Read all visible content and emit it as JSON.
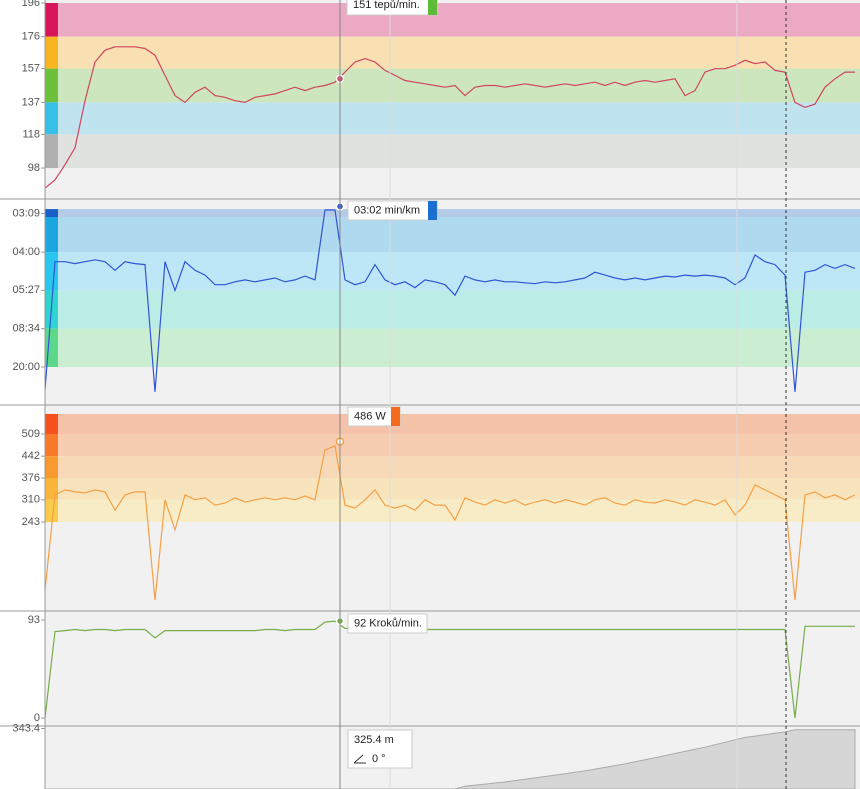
{
  "chart_data": [
    {
      "type": "line",
      "color": "#d0455f",
      "ylim": [
        80.2,
        197.8
      ],
      "yticks": [
        196,
        176,
        157,
        137,
        118,
        98
      ],
      "zones": [
        {
          "from": 176,
          "to": 196,
          "color": "#eba9c3",
          "strip": "#d8145a"
        },
        {
          "from": 157,
          "to": 176,
          "color": "#f8e0b2",
          "strip": "#f7b520"
        },
        {
          "from": 137,
          "to": 157,
          "color": "#cde6bd",
          "strip": "#6cc03a"
        },
        {
          "from": 118,
          "to": 137,
          "color": "#c0e3f0",
          "strip": "#36c0e8"
        },
        {
          "from": 98,
          "to": 118,
          "color": "#e0e2e0",
          "strip": "#b0b0b0"
        }
      ],
      "values": [
        86,
        91,
        100,
        110,
        138,
        161,
        168,
        170,
        170,
        170,
        169,
        165,
        153,
        141,
        137,
        143,
        146,
        141,
        140,
        138,
        137,
        140,
        141,
        142,
        144,
        146,
        144,
        146,
        147,
        149,
        155,
        161,
        163,
        161,
        156,
        153,
        150,
        149,
        148,
        147,
        146,
        147,
        141,
        146,
        147,
        147,
        146,
        147,
        148,
        147,
        146,
        147,
        148,
        147,
        148,
        149,
        147,
        149,
        147,
        149,
        150,
        149,
        150,
        151,
        141,
        144,
        155,
        157,
        157,
        159,
        162,
        160,
        161,
        156,
        155,
        137,
        134,
        136,
        146,
        151,
        155,
        155
      ],
      "cursor": {
        "value": 151,
        "label": "151 tepů/min.",
        "color": "#5dbb3a"
      }
    },
    {
      "type": "line",
      "color": "#2f55d4",
      "ylim": [
        -0.87,
        20.45
      ],
      "yticks": [
        {
          "value": 19.05,
          "label": "03:09"
        },
        {
          "value": 15,
          "label": "04:00"
        },
        {
          "value": 11.01,
          "label": "05:27"
        },
        {
          "value": 7,
          "label": "08:34"
        },
        {
          "value": 3,
          "label": "20:00"
        }
      ],
      "zones": [
        {
          "from": 18.67,
          "to": 19.5,
          "color": "#b4cbe8",
          "strip": "#1a5fc7"
        },
        {
          "from": 15,
          "to": 18.67,
          "color": "#afd9ef",
          "strip": "#1ca6e0"
        },
        {
          "from": 11,
          "to": 15,
          "color": "#bde7f6",
          "strip": "#29c6f0"
        },
        {
          "from": 7,
          "to": 11,
          "color": "#bcece6",
          "strip": "#2fd4d0"
        },
        {
          "from": 3,
          "to": 7,
          "color": "#cbeed2",
          "strip": "#5cd88a"
        }
      ],
      "values": [
        0.6,
        14,
        14,
        13.8,
        14,
        14.2,
        14,
        13.1,
        14,
        13.8,
        13.7,
        0.4,
        14,
        11,
        14,
        13.1,
        12.6,
        11.6,
        11.6,
        11.9,
        12.1,
        11.9,
        12.1,
        12.3,
        11.9,
        12.1,
        12.5,
        12.1,
        19.4,
        19.4,
        12.1,
        11.6,
        11.9,
        13.7,
        12.1,
        11.6,
        11.9,
        11.3,
        12.1,
        11.9,
        11.6,
        10.5,
        12.5,
        12.1,
        11.9,
        12.1,
        11.9,
        11.9,
        11.8,
        11.7,
        11.9,
        11.8,
        11.9,
        12.1,
        12.3,
        12.9,
        12.6,
        12.3,
        12.1,
        12.3,
        12.1,
        12.3,
        12.5,
        12.4,
        12.6,
        12.5,
        12.6,
        12.5,
        12.3,
        11.6,
        12.3,
        14.7,
        14,
        13.7,
        12.6,
        0.4,
        12.9,
        13.1,
        13.7,
        13.3,
        13.7,
        13.3
      ],
      "cursor": {
        "value": 19.78,
        "label": "03:02 min/km",
        "color": "#1a6fd0"
      }
    },
    {
      "type": "line",
      "color": "#f5a046",
      "ylim": [
        -23,
        593.6
      ],
      "yticks": [
        509,
        442,
        376,
        310,
        243
      ],
      "zones": [
        {
          "from": 509,
          "to": 569.5,
          "color": "#f4c1a9",
          "strip": "#f4511e"
        },
        {
          "from": 442,
          "to": 509,
          "color": "#f6cdb1",
          "strip": "#f77a2a"
        },
        {
          "from": 376,
          "to": 442,
          "color": "#f7d9b7",
          "strip": "#f89a30"
        },
        {
          "from": 310,
          "to": 376,
          "color": "#f8e4bc",
          "strip": "#f9b53a"
        },
        {
          "from": 243,
          "to": 310,
          "color": "#f8ecc6",
          "strip": "#f9cb4a"
        }
      ],
      "values": [
        37,
        325,
        340,
        334,
        331,
        340,
        334,
        279,
        325,
        334,
        334,
        7,
        310,
        219,
        325,
        310,
        316,
        294,
        300,
        316,
        303,
        310,
        316,
        310,
        316,
        310,
        322,
        310,
        461,
        473,
        294,
        285,
        310,
        340,
        294,
        285,
        294,
        279,
        310,
        294,
        294,
        249,
        316,
        303,
        294,
        310,
        300,
        310,
        294,
        303,
        310,
        300,
        310,
        303,
        294,
        310,
        316,
        300,
        294,
        310,
        303,
        300,
        310,
        303,
        294,
        310,
        303,
        294,
        310,
        264,
        294,
        355,
        340,
        325,
        310,
        7,
        325,
        334,
        316,
        325,
        310,
        325
      ],
      "cursor": {
        "value": 486,
        "label": "486 W",
        "color": "#f46a1e"
      }
    },
    {
      "type": "line",
      "color": "#78ad4c",
      "ylim": [
        -6.6,
        100.6
      ],
      "yticks": [
        93,
        0
      ],
      "values": [
        0,
        82,
        83,
        84,
        83,
        84,
        84,
        83,
        84,
        84,
        84,
        76,
        83,
        83,
        83,
        83,
        83,
        83,
        83,
        83,
        83,
        83,
        84,
        84,
        83,
        84,
        84,
        84,
        91,
        92,
        85,
        85,
        84,
        84,
        84,
        84,
        84,
        84,
        84,
        84,
        84,
        84,
        84,
        84,
        84,
        84,
        84,
        84,
        84,
        84,
        84,
        84,
        84,
        84,
        84,
        84,
        84,
        84,
        84,
        84,
        84,
        84,
        84,
        84,
        84,
        84,
        84,
        84,
        84,
        84,
        84,
        84,
        84,
        84,
        84,
        0,
        87,
        87,
        87,
        87,
        87,
        87
      ],
      "cursor": {
        "value": 92,
        "label": "92 Kroků/min.",
        "color": "#78ad4c"
      }
    },
    {
      "type": "area",
      "color": "#d6d6d6",
      "ylim": [
        300,
        344.5
      ],
      "yticks": [
        343.4
      ],
      "values": [
        300,
        300,
        300,
        300,
        300,
        300,
        300,
        300,
        300,
        300,
        300,
        300,
        300,
        300,
        300,
        300,
        300,
        300,
        300,
        300,
        300,
        300,
        300,
        300,
        300,
        300,
        300,
        300,
        300,
        300,
        300,
        300,
        300,
        300,
        300,
        300,
        300,
        300,
        300,
        300,
        300,
        300,
        302,
        302.8,
        303.5,
        304.3,
        305,
        306,
        307,
        308,
        309,
        310,
        311,
        312,
        313,
        314.3,
        315.5,
        316.8,
        318,
        319.5,
        321,
        322.5,
        324,
        325.5,
        327,
        328.5,
        330,
        331.8,
        333.5,
        335.3,
        337,
        338,
        339,
        340,
        341,
        342.5,
        342.5,
        342.5,
        342.5,
        342.5,
        342.5,
        342.5
      ],
      "cursor": {
        "value": 325.4,
        "label": "325.4 m"
      },
      "slope_label": "0 °"
    }
  ]
}
